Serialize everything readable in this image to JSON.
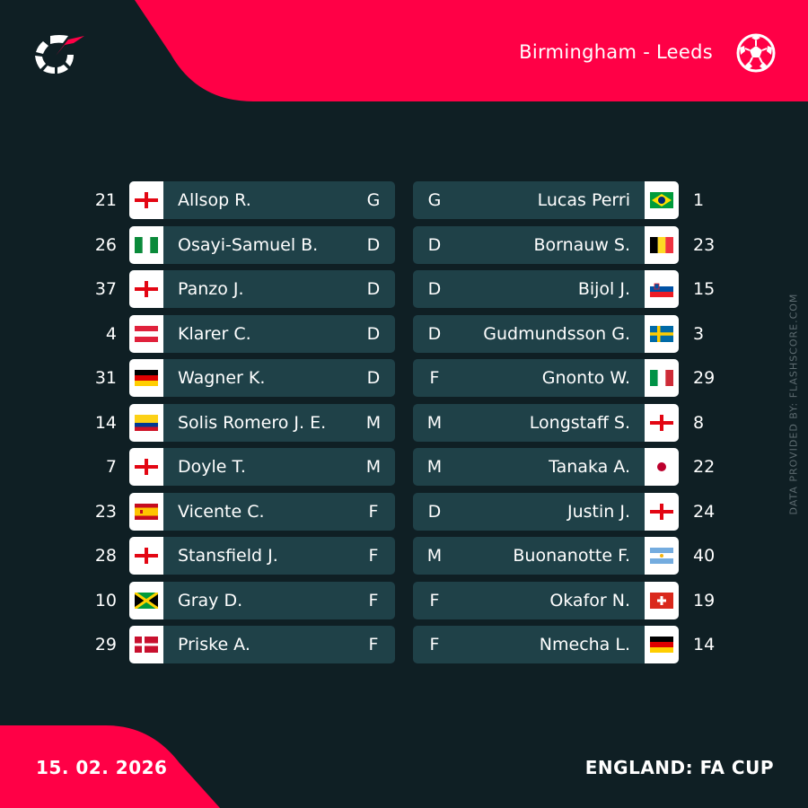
{
  "header": {
    "match_title": "Birmingham - Leeds",
    "logo_icon": "flashscore-logo-icon",
    "sport_icon": "football-icon",
    "accent_color": "#ff0046",
    "background_color": "#0f1f24",
    "row_color": "#1f4148"
  },
  "credit": "DATA PROVIDED BY: FLASHSCORE.COM",
  "footer": {
    "date": "15. 02. 2026",
    "competition": "ENGLAND: FA CUP"
  },
  "home_lineup": [
    {
      "number": "21",
      "name": "Allsop R.",
      "position": "G",
      "flag": "england"
    },
    {
      "number": "26",
      "name": "Osayi-Samuel B.",
      "position": "D",
      "flag": "nigeria"
    },
    {
      "number": "37",
      "name": "Panzo J.",
      "position": "D",
      "flag": "england"
    },
    {
      "number": "4",
      "name": "Klarer C.",
      "position": "D",
      "flag": "austria"
    },
    {
      "number": "31",
      "name": "Wagner K.",
      "position": "D",
      "flag": "germany"
    },
    {
      "number": "14",
      "name": "Solis Romero J. E.",
      "position": "M",
      "flag": "colombia"
    },
    {
      "number": "7",
      "name": "Doyle T.",
      "position": "M",
      "flag": "england"
    },
    {
      "number": "23",
      "name": "Vicente C.",
      "position": "F",
      "flag": "spain"
    },
    {
      "number": "28",
      "name": "Stansfield J.",
      "position": "F",
      "flag": "england"
    },
    {
      "number": "10",
      "name": "Gray D.",
      "position": "F",
      "flag": "jamaica"
    },
    {
      "number": "29",
      "name": "Priske A.",
      "position": "F",
      "flag": "denmark"
    }
  ],
  "away_lineup": [
    {
      "number": "1",
      "name": "Lucas Perri",
      "position": "G",
      "flag": "brazil"
    },
    {
      "number": "23",
      "name": "Bornauw S.",
      "position": "D",
      "flag": "belgium"
    },
    {
      "number": "15",
      "name": "Bijol J.",
      "position": "D",
      "flag": "slovenia"
    },
    {
      "number": "3",
      "name": "Gudmundsson G.",
      "position": "D",
      "flag": "sweden"
    },
    {
      "number": "29",
      "name": "Gnonto W.",
      "position": "F",
      "flag": "italy"
    },
    {
      "number": "8",
      "name": "Longstaff S.",
      "position": "M",
      "flag": "england"
    },
    {
      "number": "22",
      "name": "Tanaka A.",
      "position": "M",
      "flag": "japan"
    },
    {
      "number": "24",
      "name": "Justin J.",
      "position": "D",
      "flag": "england"
    },
    {
      "number": "40",
      "name": "Buonanotte F.",
      "position": "M",
      "flag": "argentina"
    },
    {
      "number": "19",
      "name": "Okafor N.",
      "position": "F",
      "flag": "switzerland"
    },
    {
      "number": "14",
      "name": "Nmecha L.",
      "position": "F",
      "flag": "germany"
    }
  ]
}
